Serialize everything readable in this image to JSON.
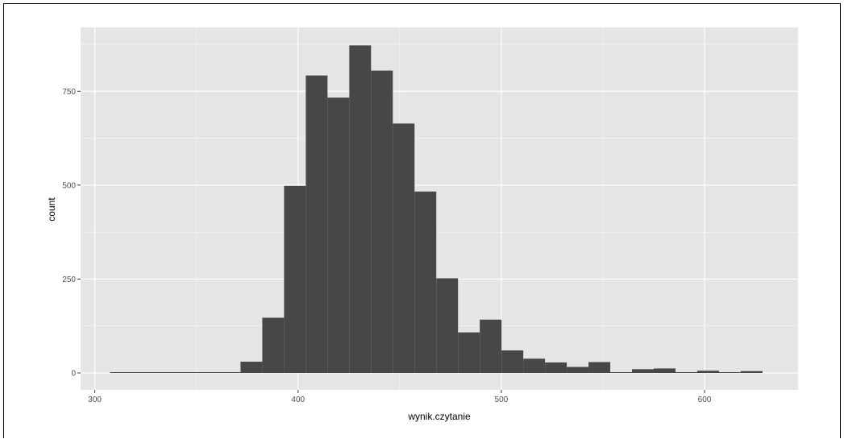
{
  "chart_data": {
    "type": "bar",
    "xlabel": "wynik.czytanie",
    "ylabel": "count",
    "xlim": [
      293,
      646
    ],
    "ylim": [
      -45,
      920
    ],
    "x_ticks": [
      300,
      400,
      500,
      600
    ],
    "y_ticks": [
      0,
      250,
      500,
      750
    ],
    "bin_width": 10.7,
    "bins": [
      {
        "x0": 307.5,
        "x1": 318.2,
        "count": 1
      },
      {
        "x0": 318.2,
        "x1": 328.9,
        "count": 0
      },
      {
        "x0": 328.9,
        "x1": 339.6,
        "count": 0
      },
      {
        "x0": 339.6,
        "x1": 350.3,
        "count": 1
      },
      {
        "x0": 350.3,
        "x1": 361.0,
        "count": 2
      },
      {
        "x0": 361.0,
        "x1": 371.7,
        "count": 1
      },
      {
        "x0": 371.7,
        "x1": 382.4,
        "count": 30
      },
      {
        "x0": 382.4,
        "x1": 393.1,
        "count": 147
      },
      {
        "x0": 393.1,
        "x1": 403.8,
        "count": 498
      },
      {
        "x0": 403.8,
        "x1": 414.5,
        "count": 792
      },
      {
        "x0": 414.5,
        "x1": 425.2,
        "count": 733
      },
      {
        "x0": 425.2,
        "x1": 435.9,
        "count": 872
      },
      {
        "x0": 435.9,
        "x1": 446.6,
        "count": 805
      },
      {
        "x0": 446.6,
        "x1": 457.3,
        "count": 664
      },
      {
        "x0": 457.3,
        "x1": 468.0,
        "count": 483
      },
      {
        "x0": 468.0,
        "x1": 478.7,
        "count": 252
      },
      {
        "x0": 478.7,
        "x1": 489.4,
        "count": 108
      },
      {
        "x0": 489.4,
        "x1": 500.1,
        "count": 142
      },
      {
        "x0": 500.1,
        "x1": 510.8,
        "count": 60
      },
      {
        "x0": 510.8,
        "x1": 521.5,
        "count": 38
      },
      {
        "x0": 521.5,
        "x1": 532.2,
        "count": 28
      },
      {
        "x0": 532.2,
        "x1": 542.9,
        "count": 16
      },
      {
        "x0": 542.9,
        "x1": 553.6,
        "count": 29
      },
      {
        "x0": 553.6,
        "x1": 564.3,
        "count": 0
      },
      {
        "x0": 564.3,
        "x1": 575.0,
        "count": 10
      },
      {
        "x0": 575.0,
        "x1": 585.7,
        "count": 12
      },
      {
        "x0": 585.7,
        "x1": 596.4,
        "count": 0
      },
      {
        "x0": 596.4,
        "x1": 607.1,
        "count": 6
      },
      {
        "x0": 607.1,
        "x1": 617.8,
        "count": 0
      },
      {
        "x0": 617.8,
        "x1": 628.5,
        "count": 5
      }
    ],
    "colors": {
      "panel": "#e5e5e5",
      "grid_major": "#ffffff",
      "bar": "#474747",
      "tick_mark": "#333333"
    },
    "grid": true,
    "legend": "none"
  }
}
